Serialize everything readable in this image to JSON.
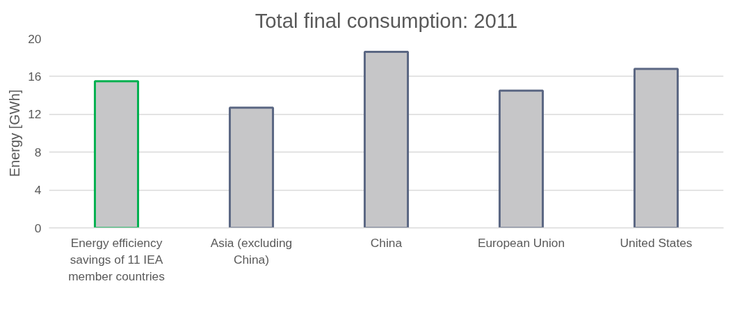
{
  "chart_data": {
    "type": "bar",
    "title": "Total final consumption: 2011",
    "ylabel": "Energy [GWh]",
    "categories": [
      "Energy efficiency savings of 11 IEA member countries",
      "Asia (excluding China)",
      "China",
      "European Union",
      "United States"
    ],
    "values": [
      15.5,
      12.7,
      18.6,
      14.5,
      16.8
    ],
    "color": "#c6c6c8",
    "colors": [
      "#00b050",
      "#5b6783",
      "#5b6783",
      "#5b6783",
      "#5b6783"
    ],
    "ylim": [
      0,
      20
    ],
    "yticks": [
      0,
      4,
      8,
      12,
      16,
      20
    ],
    "grid": "y"
  }
}
